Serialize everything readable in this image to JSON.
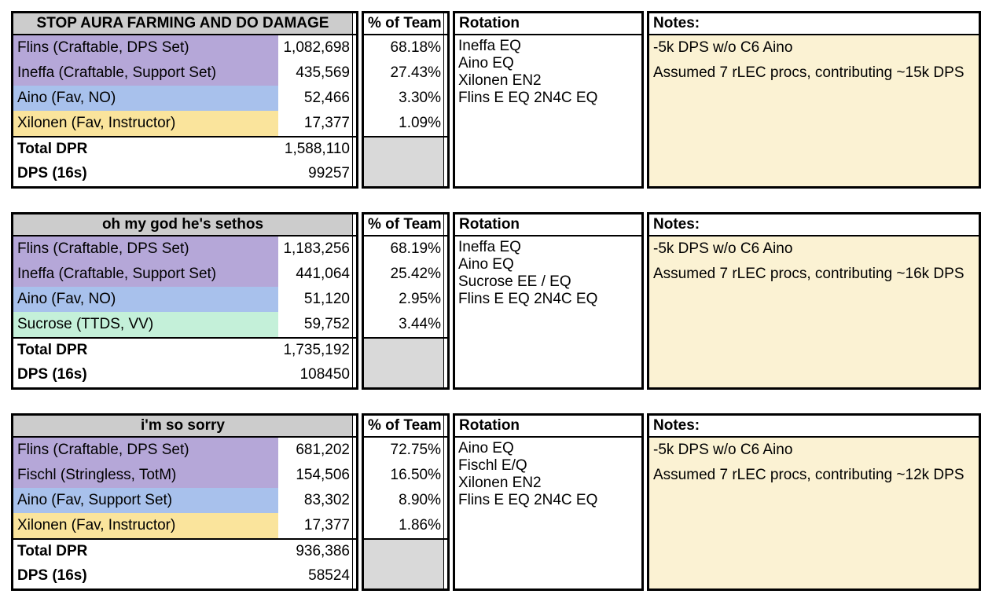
{
  "colors": {
    "header_gray": "#cccccc",
    "block_gray": "#d9d9d9",
    "purple": "#b5a7d8",
    "blue": "#a8c1ec",
    "yellow": "#fae49c",
    "green": "#c4f0d9",
    "notes_cream": "#fbf2d3",
    "border_black": "#000000"
  },
  "labels": {
    "pct_header": "% of Team",
    "rotation_header": "Rotation",
    "notes_header": "Notes:",
    "total_label": "Total DPR",
    "dps_label": "DPS (16s)"
  },
  "tables": [
    {
      "title": "STOP AURA FARMING AND DO DAMAGE",
      "rows": [
        {
          "label": "Flins (Craftable, DPS Set)",
          "value": "1,082,698",
          "pct": "68.18%",
          "color": "#b5a7d8"
        },
        {
          "label": "Ineffa (Craftable, Support Set)",
          "value": "435,569",
          "pct": "27.43%",
          "color": "#b5a7d8"
        },
        {
          "label": "Aino (Fav, NO)",
          "value": "52,466",
          "pct": "3.30%",
          "color": "#a8c1ec"
        },
        {
          "label": "Xilonen (Fav, Instructor)",
          "value": "17,377",
          "pct": "1.09%",
          "color": "#fae49c"
        }
      ],
      "total_value": "1,588,110",
      "dps_value": "99257",
      "rotation": [
        "Ineffa EQ",
        "Aino EQ",
        "Xilonen EN2",
        "Flins E EQ 2N4C EQ"
      ],
      "notes": [
        "-5k DPS w/o C6 Aino",
        "Assumed 7 rLEC procs, contributing ~15k DPS"
      ]
    },
    {
      "title": "oh my god he's sethos",
      "rows": [
        {
          "label": "Flins (Craftable, DPS Set)",
          "value": "1,183,256",
          "pct": "68.19%",
          "color": "#b5a7d8"
        },
        {
          "label": "Ineffa (Craftable, Support Set)",
          "value": "441,064",
          "pct": "25.42%",
          "color": "#b5a7d8"
        },
        {
          "label": "Aino (Fav, NO)",
          "value": "51,120",
          "pct": "2.95%",
          "color": "#a8c1ec"
        },
        {
          "label": "Sucrose (TTDS, VV)",
          "value": "59,752",
          "pct": "3.44%",
          "color": "#c4f0d9"
        }
      ],
      "total_value": "1,735,192",
      "dps_value": "108450",
      "rotation": [
        "Ineffa EQ",
        "Aino EQ",
        "Sucrose EE / EQ",
        "Flins E EQ 2N4C EQ"
      ],
      "notes": [
        "-5k DPS w/o C6 Aino",
        "Assumed 7 rLEC procs, contributing ~16k DPS"
      ]
    },
    {
      "title": "i'm so sorry",
      "rows": [
        {
          "label": "Flins (Craftable, DPS Set)",
          "value": "681,202",
          "pct": "72.75%",
          "color": "#b5a7d8"
        },
        {
          "label": "Fischl (Stringless, TotM)",
          "value": "154,506",
          "pct": "16.50%",
          "color": "#b5a7d8"
        },
        {
          "label": "Aino (Fav, Support Set)",
          "value": "83,302",
          "pct": "8.90%",
          "color": "#a8c1ec"
        },
        {
          "label": "Xilonen (Fav, Instructor)",
          "value": "17,377",
          "pct": "1.86%",
          "color": "#fae49c"
        }
      ],
      "total_value": "936,386",
      "dps_value": "58524",
      "rotation": [
        "Aino EQ",
        "Fischl E/Q",
        "Xilonen EN2",
        "Flins E EQ 2N4C EQ"
      ],
      "notes": [
        "-5k DPS w/o C6 Aino",
        "Assumed 7 rLEC procs, contributing ~12k DPS"
      ]
    }
  ]
}
